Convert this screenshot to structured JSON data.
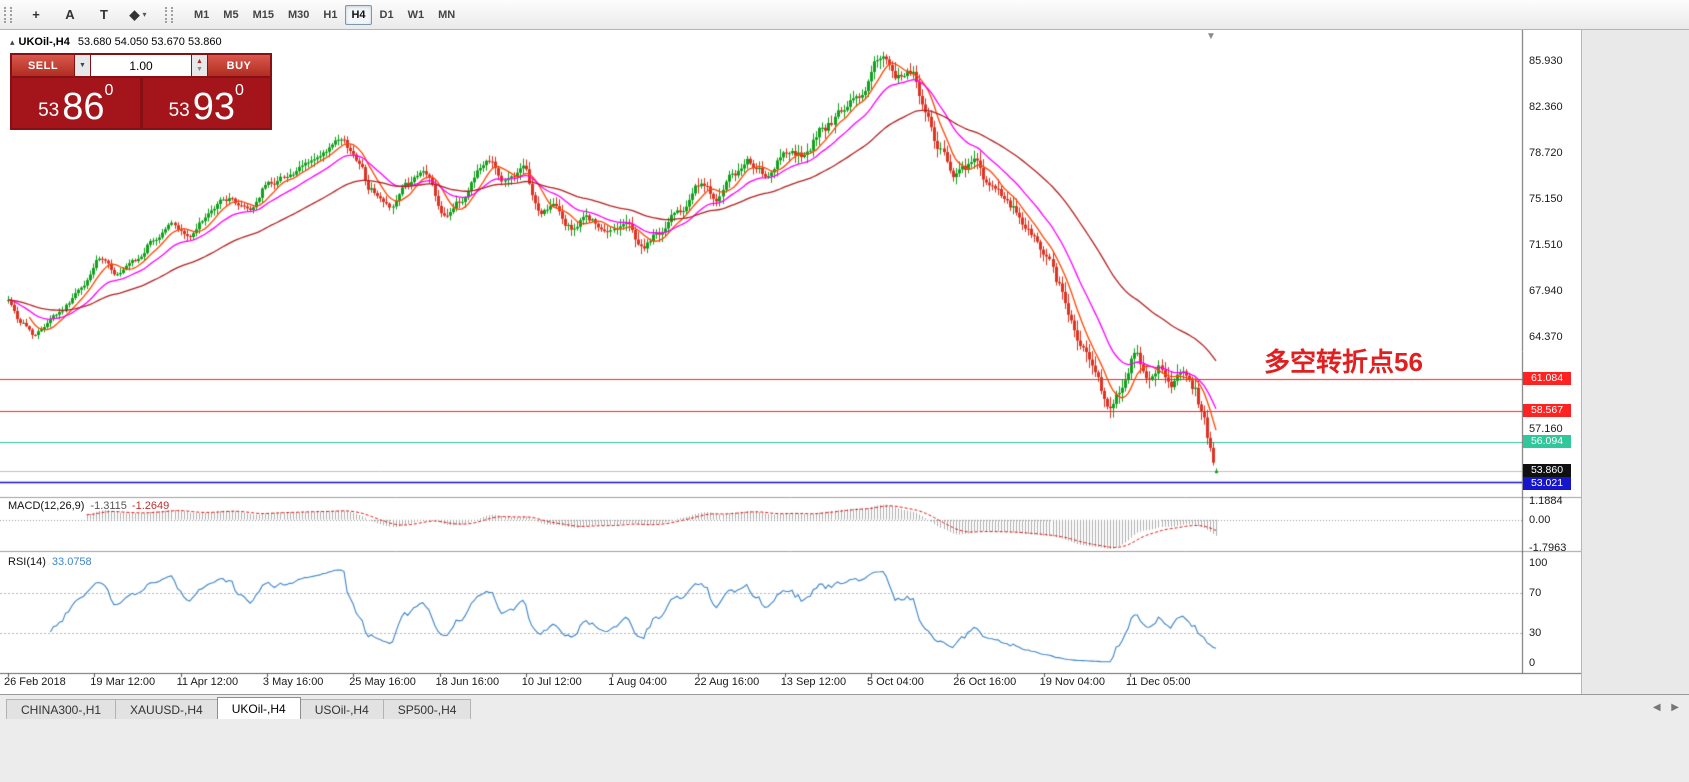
{
  "toolbar": {
    "icons": [
      {
        "name": "crosshair-icon",
        "glyph": "+"
      },
      {
        "name": "text-label-icon",
        "glyph": "A"
      },
      {
        "name": "text-object-icon",
        "glyph": "T"
      },
      {
        "name": "shapes-icon",
        "glyph": "◆",
        "dropdown_glyph": "▾"
      }
    ],
    "timeframes": [
      {
        "label": "M1",
        "active": false
      },
      {
        "label": "M5",
        "active": false
      },
      {
        "label": "M15",
        "active": false
      },
      {
        "label": "M30",
        "active": false
      },
      {
        "label": "H1",
        "active": false
      },
      {
        "label": "H4",
        "active": true
      },
      {
        "label": "D1",
        "active": false
      },
      {
        "label": "W1",
        "active": false
      },
      {
        "label": "MN",
        "active": false
      }
    ]
  },
  "chart": {
    "collapse_icon": "▴",
    "symbol": "UKOil-,H4",
    "ohlc": "53.680 54.050 53.670 53.860",
    "shift_marker_icon": "▼",
    "trade_panel": {
      "sell_label": "SELL",
      "buy_label": "BUY",
      "volume": "1.00",
      "dropdown_icon": "▼",
      "spinner_up_icon": "▲",
      "spinner_down_icon": "▼",
      "sell_small": "53",
      "sell_big": "86",
      "sell_sup": "0",
      "buy_small": "53",
      "buy_big": "93",
      "buy_sup": "0"
    },
    "annotation": {
      "text": "多空转折点56",
      "color": "#e02020"
    },
    "axis_ticks": [
      {
        "text": "85.930",
        "value": 85.93
      },
      {
        "text": "82.360",
        "value": 82.36
      },
      {
        "text": "78.720",
        "value": 78.72
      },
      {
        "text": "75.150",
        "value": 75.15
      },
      {
        "text": "71.510",
        "value": 71.51
      },
      {
        "text": "67.940",
        "value": 67.94
      },
      {
        "text": "64.370",
        "value": 64.37
      },
      {
        "text": "57.160",
        "value": 57.16
      }
    ],
    "price_labels": [
      {
        "text": "61.084",
        "value": 61.084,
        "bg": "#ff2222",
        "fg": "#ffffff"
      },
      {
        "text": "58.567",
        "value": 58.567,
        "bg": "#ff2222",
        "fg": "#ffffff"
      },
      {
        "text": "56.094",
        "value": 56.094,
        "bg": "#2fc79b",
        "fg": "#ffffff"
      },
      {
        "text": "53.860",
        "value": 53.86,
        "bg": "#101010",
        "fg": "#ffffff"
      },
      {
        "text": "53.021",
        "value": 53.021,
        "bg": "#1515cc",
        "fg": "#ffffff"
      }
    ]
  },
  "macd_panel": {
    "name": "MACD(12,26,9)",
    "value_main": "-1.3115",
    "value_signal": "-1.2649",
    "axis": [
      {
        "text": "1.1884",
        "value": 1.1884
      },
      {
        "text": "0.00",
        "value": 0
      },
      {
        "text": "-1.7963",
        "value": -1.7963
      }
    ]
  },
  "rsi_panel": {
    "name": "RSI(14)",
    "value": "33.0758",
    "axis": [
      {
        "text": "100",
        "value": 100
      },
      {
        "text": "70",
        "value": 70
      },
      {
        "text": "30",
        "value": 30
      },
      {
        "text": "0",
        "value": 0
      }
    ]
  },
  "time_axis": {
    "labels": [
      "26 Feb 2018",
      "19 Mar 12:00",
      "11 Apr 12:00",
      "3 May 16:00",
      "25 May 16:00",
      "18 Jun 16:00",
      "10 Jul 12:00",
      "1 Aug 04:00",
      "22 Aug 16:00",
      "13 Sep 12:00",
      "5 Oct 04:00",
      "26 Oct 16:00",
      "19 Nov 04:00",
      "11 Dec 05:00"
    ]
  },
  "tabs": {
    "items": [
      {
        "label": "CHINA300-,H1",
        "active": false
      },
      {
        "label": "XAUUSD-,H4",
        "active": false
      },
      {
        "label": "UKOil-,H4",
        "active": true
      },
      {
        "label": "USOil-,H4",
        "active": false
      },
      {
        "label": "SP500-,H4",
        "active": false
      }
    ],
    "scroll_left_icon": "◀",
    "scroll_right_icon": "▶"
  },
  "chart_data": {
    "type": "candlestick",
    "symbol": "UKOil-",
    "timeframe": "H4",
    "title": "UKOil-,H4",
    "ylim": [
      52.2,
      87.6
    ],
    "num_bars": 400,
    "seed": 42,
    "last_ohlc": {
      "open": 53.68,
      "high": 54.05,
      "low": 53.67,
      "close": 53.86
    },
    "current_price": 53.86,
    "up_color": "#14a01e",
    "down_color": "#dd3322",
    "price_waypoints": [
      [
        0.0,
        67.2
      ],
      [
        0.01,
        65.6
      ],
      [
        0.022,
        64.6
      ],
      [
        0.04,
        66.3
      ],
      [
        0.06,
        68.0
      ],
      [
        0.075,
        70.3
      ],
      [
        0.09,
        69.2
      ],
      [
        0.105,
        70.0
      ],
      [
        0.12,
        71.8
      ],
      [
        0.135,
        73.2
      ],
      [
        0.15,
        72.2
      ],
      [
        0.165,
        73.8
      ],
      [
        0.18,
        75.2
      ],
      [
        0.2,
        74.3
      ],
      [
        0.215,
        76.3
      ],
      [
        0.235,
        77.2
      ],
      [
        0.255,
        78.2
      ],
      [
        0.275,
        79.4
      ],
      [
        0.29,
        78.2
      ],
      [
        0.3,
        76.0
      ],
      [
        0.315,
        74.6
      ],
      [
        0.33,
        76.2
      ],
      [
        0.345,
        77.0
      ],
      [
        0.36,
        74.2
      ],
      [
        0.375,
        75.0
      ],
      [
        0.39,
        77.6
      ],
      [
        0.4,
        78.4
      ],
      [
        0.41,
        76.6
      ],
      [
        0.425,
        77.4
      ],
      [
        0.44,
        74.0
      ],
      [
        0.45,
        74.6
      ],
      [
        0.465,
        72.8
      ],
      [
        0.48,
        73.6
      ],
      [
        0.495,
        72.2
      ],
      [
        0.51,
        73.4
      ],
      [
        0.525,
        71.4
      ],
      [
        0.54,
        72.4
      ],
      [
        0.555,
        74.4
      ],
      [
        0.57,
        76.4
      ],
      [
        0.585,
        75.3
      ],
      [
        0.6,
        76.8
      ],
      [
        0.615,
        77.8
      ],
      [
        0.63,
        76.6
      ],
      [
        0.645,
        79.0
      ],
      [
        0.66,
        78.4
      ],
      [
        0.675,
        80.8
      ],
      [
        0.69,
        81.8
      ],
      [
        0.705,
        83.2
      ],
      [
        0.722,
        86.2
      ],
      [
        0.735,
        84.2
      ],
      [
        0.748,
        85.2
      ],
      [
        0.76,
        82.0
      ],
      [
        0.772,
        79.0
      ],
      [
        0.785,
        77.2
      ],
      [
        0.8,
        77.8
      ],
      [
        0.815,
        75.6
      ],
      [
        0.83,
        74.0
      ],
      [
        0.845,
        72.6
      ],
      [
        0.858,
        70.6
      ],
      [
        0.87,
        68.2
      ],
      [
        0.88,
        65.0
      ],
      [
        0.89,
        63.2
      ],
      [
        0.9,
        61.0
      ],
      [
        0.91,
        58.9
      ],
      [
        0.922,
        60.4
      ],
      [
        0.932,
        62.6
      ],
      [
        0.942,
        61.4
      ],
      [
        0.952,
        62.3
      ],
      [
        0.962,
        61.0
      ],
      [
        0.972,
        62.0
      ],
      [
        0.981,
        60.4
      ],
      [
        0.988,
        58.0
      ],
      [
        0.994,
        55.8
      ],
      [
        1.0,
        53.9
      ]
    ],
    "moving_averages": [
      {
        "period": 8,
        "type": "sma",
        "color": "#ff4500"
      },
      {
        "period": 20,
        "type": "ema",
        "color": "#ff00ff"
      },
      {
        "period": 55,
        "type": "ema",
        "color": "#b22222"
      }
    ],
    "horizontal_lines": [
      {
        "value": 61.084,
        "color": "#ff2222"
      },
      {
        "value": 58.567,
        "color": "#ff2222"
      },
      {
        "value": 56.094,
        "color": "#2fc79b"
      },
      {
        "value": 53.021,
        "color": "#1515cc"
      }
    ],
    "indicators": {
      "macd": {
        "fast": 12,
        "slow": 26,
        "signal": 9,
        "axis_max": 1.1884,
        "axis_min": -1.7963,
        "histogram_color": "#b0b0b0",
        "signal_color": "#e01818"
      },
      "rsi": {
        "period": 14,
        "levels": [
          70,
          30
        ],
        "last": 33.0758,
        "line_color": "#3d85c8"
      }
    }
  }
}
